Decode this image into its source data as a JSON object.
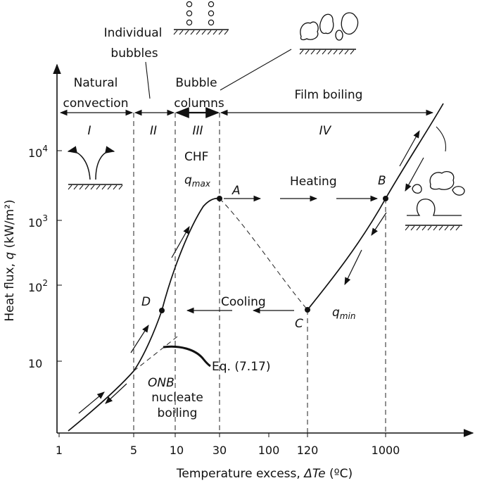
{
  "axes": {
    "x_title": "Temperature excess, ",
    "x_title_var": "ΔTe",
    "x_title_unit": " (ºC)",
    "y_title": "Heat flux, ",
    "y_title_var": "q",
    "y_title_unit": " (kW/m²)",
    "x_ticks": [
      "1",
      "5",
      "10",
      "30",
      "100",
      "120",
      "1000"
    ],
    "y_tick_10": "10",
    "y_tick_exps": [
      "2",
      "3",
      "4"
    ]
  },
  "regions": {
    "natural_1": "Natural",
    "natural_2": "convection",
    "individual_1": "Individual",
    "individual_2": "bubbles",
    "columns_1": "Bubble",
    "columns_2": "columns",
    "film": "Film boiling",
    "roman": [
      "I",
      "II",
      "III",
      "IV"
    ]
  },
  "labels": {
    "chf": "CHF",
    "qmax": "q",
    "qmax_sub": "max",
    "qmin": "q",
    "qmin_sub": "min",
    "A": "A",
    "B": "B",
    "C": "C",
    "D": "D",
    "heating": "Heating",
    "cooling": "Cooling",
    "eq": "Eq. (7.17)",
    "onb": "ONB",
    "nucleate_1": "nucleate",
    "nucleate_2": "boiling"
  }
}
